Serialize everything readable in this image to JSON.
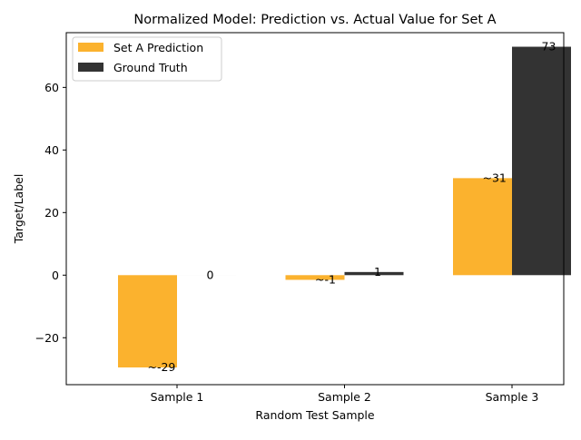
{
  "chart_data": {
    "type": "bar",
    "title": "Normalized Model: Prediction vs. Actual Value for Set A",
    "xlabel": "Random Test Sample",
    "ylabel": "Target/Label",
    "categories": [
      "Sample 1",
      "Sample 2",
      "Sample 3"
    ],
    "series": [
      {
        "name": "Set A Prediction",
        "values": [
          -29.5,
          -1.5,
          31
        ],
        "labels": [
          "~-29",
          "~-1",
          "~31"
        ],
        "color": "#fbb22e"
      },
      {
        "name": "Ground Truth",
        "values": [
          0,
          1,
          73
        ],
        "labels": [
          "0",
          "1",
          "73"
        ],
        "color": "#333333"
      }
    ],
    "ylim": [
      -35,
      77.5
    ],
    "yticks": [
      -20,
      0,
      20,
      40,
      60
    ],
    "ytick_labels": [
      "−20",
      "0",
      "20",
      "40",
      "60"
    ],
    "grid": false,
    "legend_position": "upper-left"
  }
}
